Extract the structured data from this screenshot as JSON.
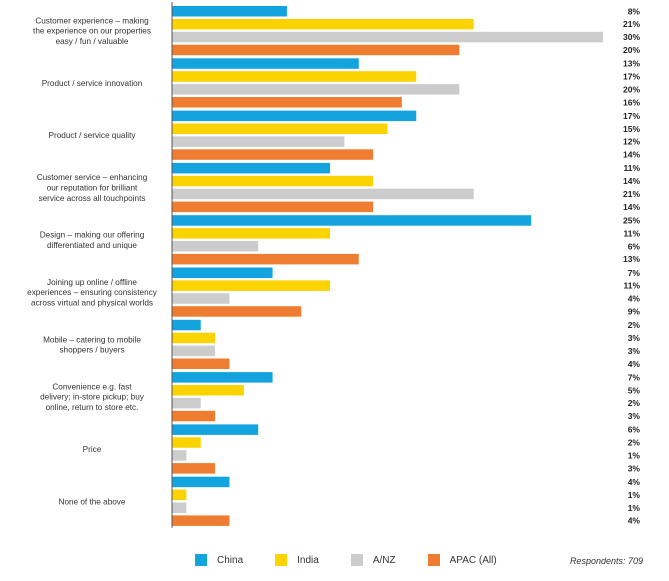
{
  "chart_data": {
    "type": "bar",
    "orientation": "horizontal",
    "xlim": [
      0,
      30
    ],
    "categories": [
      "Customer experience – making the experience on our properties easy / fun / valuable",
      "Product / service innovation",
      "Product / service quality",
      "Customer service – enhancing our reputation for brilliant service across all touchpoints",
      "Design – making our offering differentiated and unique",
      "Joining up online / offline experiences – ensuring consistency across virtual and physical worlds",
      "Mobile – catering to mobile shoppers / buyers",
      "Convenience e.g. fast delivery; in-store pickup; buy online, return to store etc.",
      "Price",
      "None of the above"
    ],
    "category_lines": [
      [
        "Customer experience – making",
        "the experience on our properties",
        "easy / fun / valuable"
      ],
      [
        "Product / service innovation"
      ],
      [
        "Product / service quality"
      ],
      [
        "Customer service – enhancing",
        "our reputation for brilliant",
        "service across all touchpoints"
      ],
      [
        "Design – making our offering",
        "differentiated and unique"
      ],
      [
        "Joining up online / offline",
        "experiences – ensuring consistency",
        "across virtual and physical worlds"
      ],
      [
        "Mobile – catering to mobile",
        "shoppers / buyers"
      ],
      [
        "Convenience e.g. fast",
        "delivery; in-store pickup; buy",
        "online, return to store etc."
      ],
      [
        "Price"
      ],
      [
        "None of the above"
      ]
    ],
    "series": [
      {
        "name": "China",
        "color": "#13a4e0",
        "values": [
          8,
          13,
          17,
          11,
          25,
          7,
          2,
          7,
          6,
          4
        ]
      },
      {
        "name": "India",
        "color": "#fbd301",
        "values": [
          21,
          17,
          15,
          14,
          11,
          11,
          3,
          5,
          2,
          1
        ]
      },
      {
        "name": "A/NZ",
        "color": "#cccccc",
        "values": [
          30,
          20,
          12,
          21,
          6,
          4,
          3,
          2,
          1,
          1
        ]
      },
      {
        "name": "APAC (All)",
        "color": "#ef7d31",
        "values": [
          20,
          16,
          14,
          14,
          13,
          9,
          4,
          3,
          3,
          4
        ]
      }
    ],
    "value_suffix": "%",
    "legend_position": "bottom",
    "grid": false
  },
  "footnote": "Respondents: 709"
}
